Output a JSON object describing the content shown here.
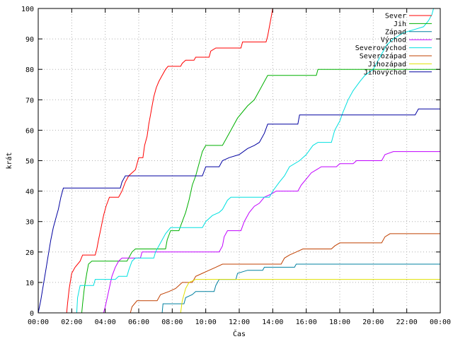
{
  "chart_data": {
    "type": "line",
    "title": "",
    "xlabel": "Čas",
    "ylabel": "krát",
    "xlim": [
      0,
      24
    ],
    "ylim": [
      0,
      100
    ],
    "x_ticks": [
      {
        "value": 0,
        "label": "00:00"
      },
      {
        "value": 2,
        "label": "02:00"
      },
      {
        "value": 4,
        "label": "04:00"
      },
      {
        "value": 6,
        "label": "06:00"
      },
      {
        "value": 8,
        "label": "08:00"
      },
      {
        "value": 10,
        "label": "10:00"
      },
      {
        "value": 12,
        "label": "12:00"
      },
      {
        "value": 14,
        "label": "14:00"
      },
      {
        "value": 16,
        "label": "16:00"
      },
      {
        "value": 18,
        "label": "18:00"
      },
      {
        "value": 20,
        "label": "20:00"
      },
      {
        "value": 22,
        "label": "22:00"
      },
      {
        "value": 24,
        "label": "00:00"
      }
    ],
    "y_ticks": [
      0,
      10,
      20,
      30,
      40,
      50,
      60,
      70,
      80,
      90,
      100
    ],
    "grid": true,
    "legend_position": "top-right",
    "series": [
      {
        "name": "Sever",
        "color": "#ff0000",
        "points": [
          [
            1.7,
            0
          ],
          [
            1.75,
            3
          ],
          [
            1.85,
            8
          ],
          [
            2.0,
            13
          ],
          [
            2.2,
            15
          ],
          [
            2.5,
            17
          ],
          [
            2.65,
            19
          ],
          [
            3.4,
            19
          ],
          [
            3.5,
            21
          ],
          [
            3.6,
            24
          ],
          [
            3.75,
            28
          ],
          [
            3.9,
            32
          ],
          [
            4.05,
            35
          ],
          [
            4.25,
            38
          ],
          [
            4.8,
            38
          ],
          [
            5.0,
            40
          ],
          [
            5.2,
            43
          ],
          [
            5.4,
            45
          ],
          [
            5.8,
            47
          ],
          [
            6.0,
            51
          ],
          [
            6.25,
            51
          ],
          [
            6.35,
            55
          ],
          [
            6.5,
            58
          ],
          [
            6.6,
            62
          ],
          [
            6.7,
            65
          ],
          [
            6.8,
            68
          ],
          [
            6.9,
            71
          ],
          [
            7.05,
            74
          ],
          [
            7.2,
            76
          ],
          [
            7.4,
            78
          ],
          [
            7.6,
            80
          ],
          [
            7.75,
            81
          ],
          [
            8.5,
            81
          ],
          [
            8.6,
            82
          ],
          [
            8.8,
            83
          ],
          [
            9.3,
            83
          ],
          [
            9.4,
            84
          ],
          [
            10.2,
            84
          ],
          [
            10.3,
            86
          ],
          [
            10.6,
            87
          ],
          [
            12.1,
            87
          ],
          [
            12.2,
            89
          ],
          [
            13.6,
            89
          ],
          [
            13.7,
            91
          ],
          [
            13.8,
            94
          ],
          [
            13.9,
            97
          ],
          [
            14.0,
            100
          ],
          [
            14.1,
            100
          ]
        ]
      },
      {
        "name": "Jih",
        "color": "#00b000",
        "points": [
          [
            2.6,
            0
          ],
          [
            2.65,
            3
          ],
          [
            2.75,
            8
          ],
          [
            2.9,
            13
          ],
          [
            3.0,
            16
          ],
          [
            3.2,
            17
          ],
          [
            5.3,
            17
          ],
          [
            5.4,
            18
          ],
          [
            5.6,
            20
          ],
          [
            5.8,
            21
          ],
          [
            7.6,
            21
          ],
          [
            7.7,
            24
          ],
          [
            7.9,
            27
          ],
          [
            8.4,
            27
          ],
          [
            8.6,
            30
          ],
          [
            8.8,
            33
          ],
          [
            9.0,
            37
          ],
          [
            9.2,
            42
          ],
          [
            9.4,
            45
          ],
          [
            9.6,
            49
          ],
          [
            9.8,
            53
          ],
          [
            10.0,
            55
          ],
          [
            11.0,
            55
          ],
          [
            11.2,
            57
          ],
          [
            11.5,
            60
          ],
          [
            11.9,
            64
          ],
          [
            12.2,
            66
          ],
          [
            12.5,
            68
          ],
          [
            12.9,
            70
          ],
          [
            13.2,
            73
          ],
          [
            13.5,
            76
          ],
          [
            13.7,
            78
          ],
          [
            16.6,
            78
          ],
          [
            16.7,
            80
          ],
          [
            24,
            80
          ]
        ]
      },
      {
        "name": "Západ",
        "color": "#0080a0",
        "points": [
          [
            7.4,
            0
          ],
          [
            7.45,
            3
          ],
          [
            8.7,
            3
          ],
          [
            8.8,
            5
          ],
          [
            9.2,
            6
          ],
          [
            9.4,
            7
          ],
          [
            10.5,
            7
          ],
          [
            10.6,
            9
          ],
          [
            10.8,
            11
          ],
          [
            11.8,
            11
          ],
          [
            11.9,
            13
          ],
          [
            12.5,
            14
          ],
          [
            13.4,
            14
          ],
          [
            13.5,
            15
          ],
          [
            15.3,
            15
          ],
          [
            15.4,
            16
          ],
          [
            24,
            16
          ]
        ]
      },
      {
        "name": "Východ",
        "color": "#c000ff",
        "points": [
          [
            3.9,
            0
          ],
          [
            4.0,
            2
          ],
          [
            4.2,
            7
          ],
          [
            4.4,
            12
          ],
          [
            4.6,
            15
          ],
          [
            4.8,
            17
          ],
          [
            5.0,
            18
          ],
          [
            6.1,
            18
          ],
          [
            6.2,
            20
          ],
          [
            10.8,
            20
          ],
          [
            11.0,
            22
          ],
          [
            11.1,
            25
          ],
          [
            11.3,
            27
          ],
          [
            12.1,
            27
          ],
          [
            12.3,
            30
          ],
          [
            12.6,
            33
          ],
          [
            12.9,
            35
          ],
          [
            13.2,
            36
          ],
          [
            13.5,
            38
          ],
          [
            13.9,
            39
          ],
          [
            14.2,
            40
          ],
          [
            15.5,
            40
          ],
          [
            15.7,
            42
          ],
          [
            16.0,
            44
          ],
          [
            16.3,
            46
          ],
          [
            16.6,
            47
          ],
          [
            16.9,
            48
          ],
          [
            17.8,
            48
          ],
          [
            18.0,
            49
          ],
          [
            18.8,
            49
          ],
          [
            19.0,
            50
          ],
          [
            20.5,
            50
          ],
          [
            20.7,
            52
          ],
          [
            21.2,
            53
          ],
          [
            24,
            53
          ]
        ]
      },
      {
        "name": "Severovýchod",
        "color": "#00e0e0",
        "points": [
          [
            2.3,
            0
          ],
          [
            2.35,
            5
          ],
          [
            2.5,
            9
          ],
          [
            3.3,
            9
          ],
          [
            3.4,
            11
          ],
          [
            4.6,
            11
          ],
          [
            4.8,
            12
          ],
          [
            5.3,
            12
          ],
          [
            5.4,
            14
          ],
          [
            5.6,
            17
          ],
          [
            5.8,
            18
          ],
          [
            6.9,
            18
          ],
          [
            7.0,
            20
          ],
          [
            7.2,
            22
          ],
          [
            7.4,
            24
          ],
          [
            7.6,
            26
          ],
          [
            7.9,
            28
          ],
          [
            9.8,
            28
          ],
          [
            10.0,
            30
          ],
          [
            10.4,
            32
          ],
          [
            10.8,
            33
          ],
          [
            11.0,
            34
          ],
          [
            11.3,
            37
          ],
          [
            11.5,
            38
          ],
          [
            13.8,
            38
          ],
          [
            14.0,
            40
          ],
          [
            14.4,
            43
          ],
          [
            14.7,
            45
          ],
          [
            15.0,
            48
          ],
          [
            15.6,
            50
          ],
          [
            16.0,
            52
          ],
          [
            16.4,
            55
          ],
          [
            16.7,
            56
          ],
          [
            17.5,
            56
          ],
          [
            17.7,
            60
          ],
          [
            18.0,
            63
          ],
          [
            18.2,
            66
          ],
          [
            18.5,
            70
          ],
          [
            18.8,
            73
          ],
          [
            19.2,
            76
          ],
          [
            19.5,
            78
          ],
          [
            20.0,
            80
          ],
          [
            20.4,
            84
          ],
          [
            20.8,
            88
          ],
          [
            21.2,
            90
          ],
          [
            21.8,
            92
          ],
          [
            22.4,
            93
          ],
          [
            23.0,
            94
          ],
          [
            23.3,
            96
          ],
          [
            23.5,
            98
          ],
          [
            23.6,
            100
          ]
        ]
      },
      {
        "name": "Severozápad",
        "color": "#c04000",
        "points": [
          [
            5.5,
            0
          ],
          [
            5.6,
            2
          ],
          [
            5.9,
            4
          ],
          [
            7.1,
            4
          ],
          [
            7.3,
            6
          ],
          [
            7.8,
            7
          ],
          [
            8.2,
            8
          ],
          [
            8.4,
            9
          ],
          [
            8.6,
            10
          ],
          [
            9.2,
            10
          ],
          [
            9.4,
            12
          ],
          [
            9.8,
            13
          ],
          [
            10.2,
            14
          ],
          [
            10.6,
            15
          ],
          [
            11.0,
            16
          ],
          [
            14.5,
            16
          ],
          [
            14.7,
            18
          ],
          [
            15.0,
            19
          ],
          [
            15.4,
            20
          ],
          [
            15.8,
            21
          ],
          [
            17.5,
            21
          ],
          [
            17.7,
            22
          ],
          [
            18.0,
            23
          ],
          [
            20.5,
            23
          ],
          [
            20.7,
            25
          ],
          [
            21.0,
            26
          ],
          [
            24,
            26
          ]
        ]
      },
      {
        "name": "Jihozápad",
        "color": "#e0e000",
        "points": [
          [
            8.5,
            0
          ],
          [
            8.6,
            4
          ],
          [
            8.8,
            8
          ],
          [
            9.0,
            10
          ],
          [
            9.4,
            11
          ],
          [
            24,
            11
          ]
        ]
      },
      {
        "name": "Jihovýchod",
        "color": "#0000a0",
        "points": [
          [
            0,
            0
          ],
          [
            0.15,
            4
          ],
          [
            0.3,
            9
          ],
          [
            0.45,
            14
          ],
          [
            0.6,
            19
          ],
          [
            0.75,
            24
          ],
          [
            0.9,
            28
          ],
          [
            1.05,
            31
          ],
          [
            1.2,
            34
          ],
          [
            1.35,
            38
          ],
          [
            1.5,
            41
          ],
          [
            4.9,
            41
          ],
          [
            5.0,
            43
          ],
          [
            5.2,
            45
          ],
          [
            9.8,
            45
          ],
          [
            10.0,
            48
          ],
          [
            10.8,
            48
          ],
          [
            11.0,
            50
          ],
          [
            11.4,
            51
          ],
          [
            12.0,
            52
          ],
          [
            12.5,
            54
          ],
          [
            12.9,
            55
          ],
          [
            13.2,
            56
          ],
          [
            13.5,
            59
          ],
          [
            13.7,
            62
          ],
          [
            15.5,
            62
          ],
          [
            15.6,
            65
          ],
          [
            22.5,
            65
          ],
          [
            22.7,
            67
          ],
          [
            24,
            67
          ]
        ]
      }
    ]
  }
}
